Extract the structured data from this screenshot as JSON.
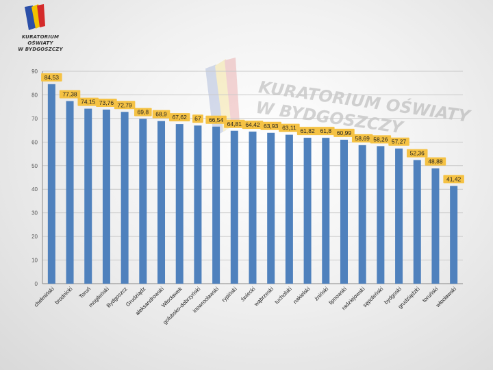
{
  "logo": {
    "line1": "KURATORIUM OŚWIATY",
    "line2": "W BYDGOSZCZY"
  },
  "colors": {
    "bar": "#4f81bd",
    "label_bg": "#f5c244",
    "grid": "#c8c8c8",
    "axis": "#888888"
  },
  "chart_data": {
    "type": "bar",
    "title": "",
    "xlabel": "",
    "ylabel": "",
    "ylim": [
      0,
      90
    ],
    "yticks": [
      0,
      10,
      20,
      30,
      40,
      50,
      60,
      70,
      80,
      90
    ],
    "grid": true,
    "categories": [
      "chełmiński",
      "brodnicki",
      "Toruń",
      "mogileński",
      "Bydgoszcz",
      "Grudziądz",
      "aleksandrowski",
      "Włocławek",
      "golubsko-dobrzyński",
      "inowrocławski",
      "rypiński",
      "świecki",
      "wąbrzeski",
      "tucholski",
      "nakielski",
      "żniński",
      "lipnowski",
      "radziejowski",
      "sępoleński",
      "bydgoski",
      "grudziądzki",
      "toruński",
      "włocławski"
    ],
    "values": [
      84.53,
      77.38,
      74.15,
      73.76,
      72.79,
      69.8,
      68.9,
      67.62,
      67,
      66.54,
      64.81,
      64.42,
      63.93,
      63.11,
      61.82,
      61.8,
      60.99,
      58.69,
      58.26,
      57.27,
      52.36,
      48.88,
      41.42
    ],
    "value_labels": [
      "84,53",
      "77,38",
      "74,15",
      "73,76",
      "72,79",
      "69,8",
      "68,9",
      "67,62",
      "67",
      "66,54",
      "64,81",
      "64,42",
      "63,93",
      "63,11",
      "61,82",
      "61,8",
      "60,99",
      "58,69",
      "58,26",
      "57,27",
      "52,36",
      "48,88",
      "41,42"
    ]
  }
}
